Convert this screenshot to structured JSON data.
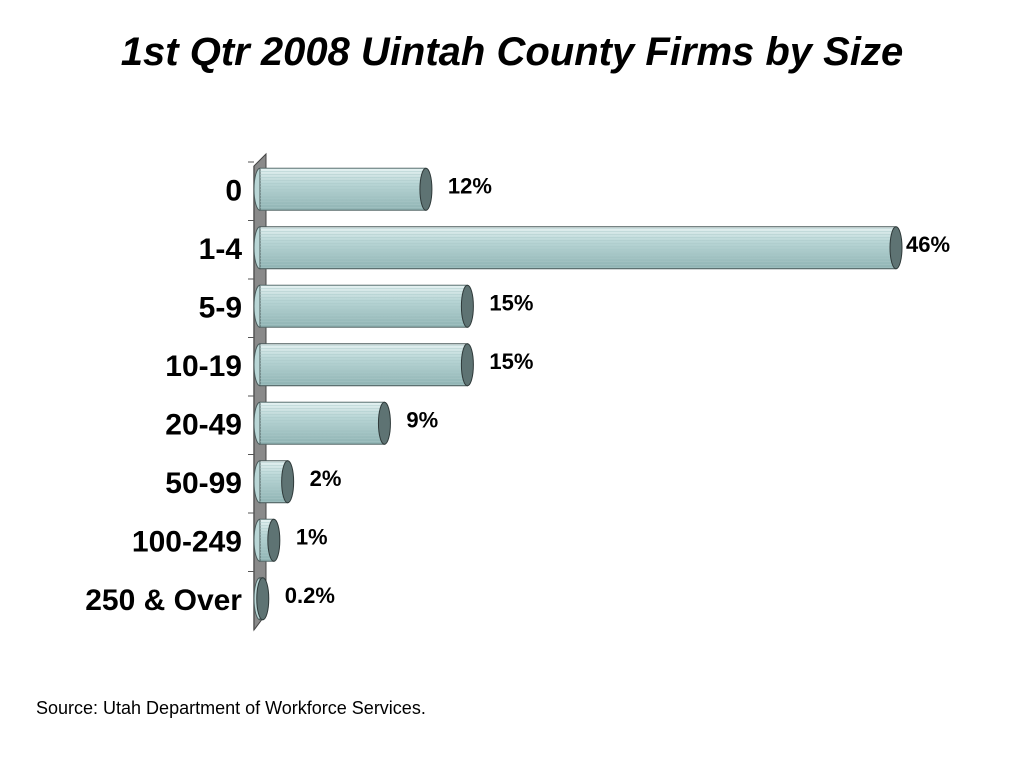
{
  "title": "1st Qtr 2008 Uintah County Firms by Size",
  "source": "Source: Utah Department of Workforce Services.",
  "colors": {
    "bar_fill_light": "#e6f2f2",
    "bar_fill_mid": "#b9d6d6",
    "bar_fill_dark": "#8fb3b3",
    "bar_end": "#5e7373",
    "bar_stripe": "#a9c7c7",
    "wall": "#8a8a8a",
    "axis": "#555555"
  },
  "chart_data": {
    "type": "bar",
    "orientation": "horizontal",
    "categories": [
      "0",
      "1-4",
      "5-9",
      "10-19",
      "20-49",
      "50-99",
      "100-249",
      "250 & Over"
    ],
    "values": [
      12,
      46,
      15,
      15,
      9,
      2,
      1,
      0.2
    ],
    "value_labels": [
      "12%",
      "46%",
      "15%",
      "15%",
      "9%",
      "2%",
      "1%",
      "0.2%"
    ],
    "title": "1st Qtr 2008 Uintah County Firms by Size",
    "xlabel": "",
    "ylabel": "",
    "xlim": [
      0,
      46
    ],
    "grid": false,
    "legend": "none"
  }
}
